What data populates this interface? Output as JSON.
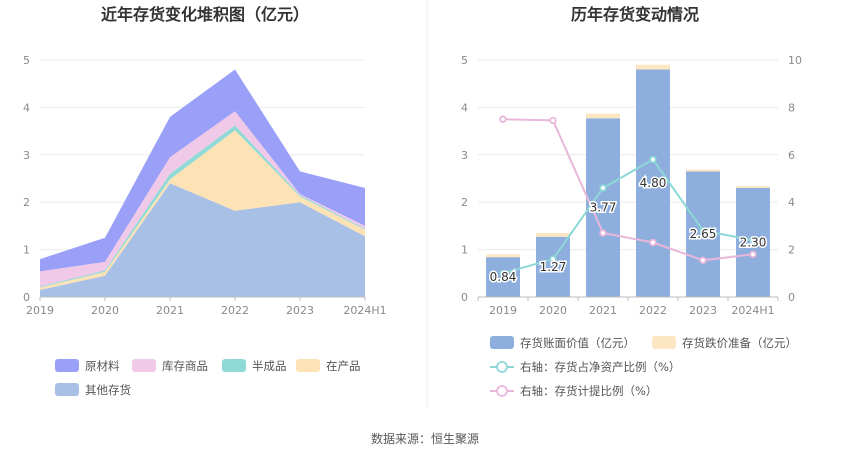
{
  "source": "数据来源：恒生聚源",
  "chart_data": [
    {
      "type": "area",
      "stacked": true,
      "title": "近年存货变化堆积图（亿元）",
      "categories": [
        "2019",
        "2020",
        "2021",
        "2022",
        "2023",
        "2024H1"
      ],
      "ylim": [
        0,
        5
      ],
      "yticks": [
        "0",
        "1",
        "2",
        "3",
        "4",
        "5"
      ],
      "grid": true,
      "legend_position": "bottom-left",
      "series": [
        {
          "name": "其他存货",
          "color": "#a8c0e6",
          "values": [
            0.15,
            0.45,
            2.4,
            1.82,
            2.0,
            1.28
          ]
        },
        {
          "name": "在产品",
          "color": "#fde2b5",
          "values": [
            0.05,
            0.08,
            0.08,
            1.7,
            0.12,
            0.14
          ]
        },
        {
          "name": "半成品",
          "color": "#8fdad6",
          "values": [
            0.02,
            0.03,
            0.12,
            0.1,
            0.03,
            0.02
          ]
        },
        {
          "name": "库存商品",
          "color": "#f0c9e8",
          "values": [
            0.32,
            0.18,
            0.35,
            0.3,
            0.02,
            0.06
          ]
        },
        {
          "name": "原材料",
          "color": "#9aa0f8",
          "values": [
            0.26,
            0.51,
            0.85,
            0.88,
            0.48,
            0.8
          ]
        }
      ],
      "legend_order": [
        "原材料",
        "库存商品",
        "半成品",
        "在产品",
        "其他存货"
      ]
    },
    {
      "type": "bar",
      "title": "历年存货变动情况",
      "categories": [
        "2019",
        "2020",
        "2021",
        "2022",
        "2023",
        "2024H1"
      ],
      "ylim_left": [
        0,
        5
      ],
      "ylim_right": [
        0,
        10
      ],
      "yticks_left": [
        "0",
        "1",
        "2",
        "3",
        "4",
        "5"
      ],
      "yticks_right": [
        "0",
        "2",
        "4",
        "6",
        "8",
        "10"
      ],
      "grid": true,
      "legend_position": "bottom",
      "series": [
        {
          "name": "存货账面价值（亿元）",
          "kind": "bar",
          "axis": "left",
          "color": "#8eaedd",
          "values": [
            0.84,
            1.27,
            3.77,
            4.8,
            2.65,
            2.3
          ],
          "labels": [
            "0.84",
            "1.27",
            "3.77",
            "4.80",
            "2.65",
            "2.30"
          ]
        },
        {
          "name": "存货跌价准备（亿元）",
          "kind": "bar",
          "axis": "left",
          "color": "#fde6c2",
          "values": [
            0.06,
            0.08,
            0.1,
            0.1,
            0.04,
            0.04
          ]
        },
        {
          "name": "右轴：存货占净资产比例（%）",
          "kind": "line",
          "axis": "right",
          "color": "#8dd8d6",
          "values": [
            1.0,
            1.6,
            4.6,
            5.8,
            2.8,
            2.4
          ]
        },
        {
          "name": "右轴：存货计提比例（%）",
          "kind": "line",
          "axis": "right",
          "color": "#e8b7da",
          "values": [
            7.5,
            7.45,
            2.7,
            2.3,
            1.55,
            1.8
          ]
        }
      ]
    }
  ]
}
